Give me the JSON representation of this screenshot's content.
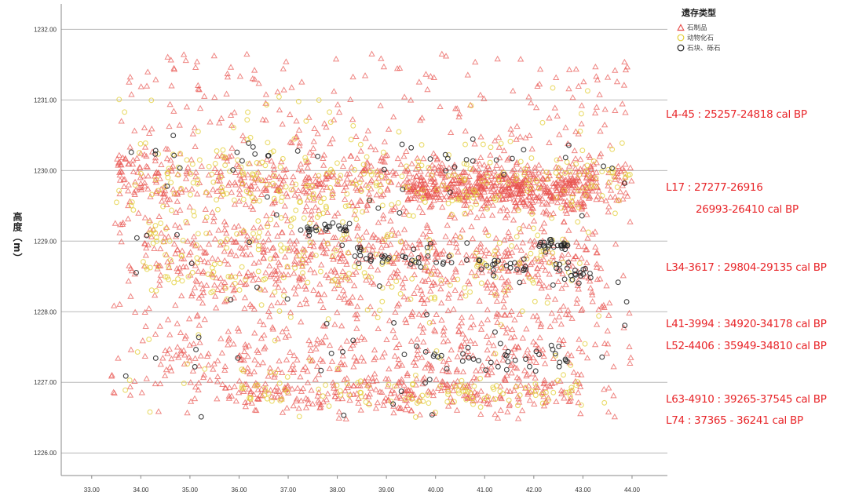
{
  "chart_data": {
    "type": "scatter",
    "title": "",
    "xlabel": "",
    "ylabel": "高度（m）",
    "xlim": [
      32.38,
      44.72
    ],
    "ylim": [
      1225.68,
      1232.36
    ],
    "xticks": [
      "33.00",
      "34.00",
      "35.00",
      "36.00",
      "37.00",
      "38.00",
      "39.00",
      "40.00",
      "41.00",
      "42.00",
      "43.00",
      "44.00"
    ],
    "yticks": [
      "1226.00",
      "1227.00",
      "1228.00",
      "1229.00",
      "1230.00",
      "1231.00",
      "1232.00"
    ],
    "grid": "horizontal",
    "legend": {
      "title": "遗存类型",
      "placement": "top-right",
      "entries": [
        {
          "key": "artifact",
          "label": "石制品",
          "marker": "triangle",
          "color": "#e8524f"
        },
        {
          "key": "fauna",
          "label": "动物化石",
          "marker": "circle",
          "color": "#e3cf3a"
        },
        {
          "key": "stone",
          "label": "石块、砾石",
          "marker": "circle",
          "color": "#222222"
        }
      ]
    },
    "series_note": "point clouds described as distributions in data units (x in m, y = elevation in m)",
    "series": [
      {
        "name": "石制品",
        "key": "artifact",
        "clusters": [
          {
            "count": 650,
            "dist": "uniform",
            "x": [
              33.4,
              44.0
            ],
            "y": [
              1226.45,
              1231.65
            ]
          },
          {
            "count": 520,
            "dist": "normal",
            "x": [
              33.5,
              44.0
            ],
            "y": [
              1229.85,
              1229.85
            ],
            "sd": 0.22
          },
          {
            "count": 420,
            "dist": "normal",
            "x": [
              39.4,
              43.2
            ],
            "y": [
              1229.75,
              1229.75
            ],
            "sd": 0.15
          },
          {
            "count": 380,
            "dist": "normal",
            "x": [
              34.0,
              43.5
            ],
            "y": [
              1228.85,
              1228.7
            ],
            "sd": 0.25
          },
          {
            "count": 200,
            "dist": "normal",
            "x": [
              35.0,
              43.0
            ],
            "y": [
              1228.3,
              1228.3
            ],
            "sd": 0.4
          },
          {
            "count": 240,
            "dist": "normal",
            "x": [
              34.0,
              43.0
            ],
            "y": [
              1227.35,
              1227.35
            ],
            "sd": 0.3
          },
          {
            "count": 240,
            "dist": "normal",
            "x": [
              35.5,
              43.0
            ],
            "y": [
              1226.85,
              1226.85
            ],
            "sd": 0.12
          }
        ]
      },
      {
        "name": "动物化石",
        "key": "fauna",
        "clusters": [
          {
            "count": 250,
            "dist": "normal",
            "x": [
              33.8,
              44.0
            ],
            "y": [
              1229.8,
              1229.8
            ],
            "sd": 0.3
          },
          {
            "count": 180,
            "dist": "normal",
            "x": [
              34.0,
              43.0
            ],
            "y": [
              1228.75,
              1228.65
            ],
            "sd": 0.3
          },
          {
            "count": 100,
            "dist": "normal",
            "x": [
              36.0,
              43.0
            ],
            "y": [
              1226.85,
              1226.85
            ],
            "sd": 0.12
          },
          {
            "count": 120,
            "dist": "uniform",
            "x": [
              33.5,
              44.0
            ],
            "y": [
              1226.5,
              1231.2
            ]
          }
        ]
      },
      {
        "name": "石块、砾石",
        "key": "stone",
        "clusters": [
          {
            "count": 22,
            "dist": "normal",
            "x": [
              37.2,
              38.3
            ],
            "y": [
              1229.18,
              1229.18
            ],
            "sd": 0.04
          },
          {
            "count": 25,
            "dist": "normal",
            "x": [
              38.3,
              40.0
            ],
            "y": [
              1228.8,
              1228.75
            ],
            "sd": 0.07
          },
          {
            "count": 45,
            "dist": "normal",
            "x": [
              40.0,
              43.2
            ],
            "y": [
              1228.75,
              1228.55
            ],
            "sd": 0.07
          },
          {
            "count": 25,
            "dist": "normal",
            "x": [
              42.1,
              42.7
            ],
            "y": [
              1228.93,
              1228.93
            ],
            "sd": 0.03
          },
          {
            "count": 35,
            "dist": "normal",
            "x": [
              39.5,
              42.7
            ],
            "y": [
              1227.35,
              1227.3
            ],
            "sd": 0.1
          },
          {
            "count": 25,
            "dist": "normal",
            "x": [
              34.5,
              44.0
            ],
            "y": [
              1230.2,
              1230.2
            ],
            "sd": 0.12
          },
          {
            "count": 70,
            "dist": "uniform",
            "x": [
              33.5,
              44.0
            ],
            "y": [
              1226.5,
              1230.5
            ]
          }
        ]
      }
    ],
    "annotations": [
      {
        "id": "l4",
        "text": "L4-45 : 25257-24818 cal BP"
      },
      {
        "id": "l17a",
        "text": "L17 : 27277-26916"
      },
      {
        "id": "l17b",
        "text": "26993-26410 cal BP"
      },
      {
        "id": "l34",
        "text": "L34-3617 : 29804-29135 cal BP"
      },
      {
        "id": "l41",
        "text": "L41-3994 : 34920-34178 cal BP"
      },
      {
        "id": "l52",
        "text": "L52-4406 : 35949-34810 cal BP"
      },
      {
        "id": "l63",
        "text": "L63-4910 : 39265-37545 cal BP"
      },
      {
        "id": "l74",
        "text": "L74 : 37365 - 36241 cal BP"
      }
    ]
  }
}
